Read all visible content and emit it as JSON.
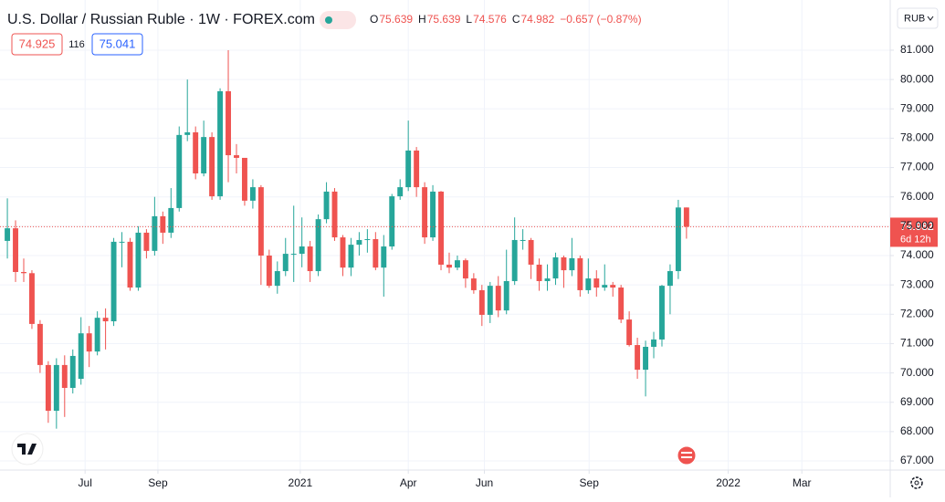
{
  "header": {
    "title": "U.S. Dollar / Russian Ruble · 1W · FOREX.com",
    "bid": "74.925",
    "spread": "116",
    "ask": "75.041",
    "ohlc_labels": [
      "O",
      "H",
      "L",
      "C"
    ],
    "change": "−0.657 (−0.87%)",
    "currency": "RUB",
    "countdown": "6d 12h"
  },
  "chart_data": {
    "type": "candlestick",
    "up_color": "#26a69a",
    "down_color": "#ef5350",
    "open": [
      74.5,
      74.93,
      73.44,
      73.4,
      71.67,
      70.27,
      68.71,
      70.27,
      69.49,
      69.8,
      71.35,
      70.73,
      71.88,
      71.76,
      74.47,
      74.47,
      72.91,
      74.78,
      74.16,
      75.34,
      74.78,
      75.62,
      78.11,
      78.2,
      76.8,
      78.04,
      76.02,
      79.6,
      77.42,
      77.33,
      75.87,
      76.33,
      74.0,
      72.97,
      73.47,
      74.06,
      74.06,
      74.31,
      73.47,
      75.24,
      76.18,
      74.62,
      73.59,
      74.37,
      74.53,
      74.56,
      73.59,
      74.31,
      76.02,
      76.33,
      77.58,
      76.33,
      74.62,
      76.18,
      73.69,
      73.59,
      73.84,
      73.22,
      72.82,
      71.98,
      72.97,
      72.13,
      73.13,
      74.53,
      74.53,
      73.69,
      73.13,
      73.22,
      73.94,
      73.5,
      73.91,
      72.82,
      73.22,
      72.91,
      73.0,
      72.91,
      71.82,
      70.95,
      70.11,
      70.89,
      71.14,
      72.97,
      73.47,
      75.639
    ],
    "high": [
      75.95,
      75.2,
      73.9,
      73.5,
      71.8,
      70.4,
      70.5,
      70.6,
      70.8,
      71.9,
      71.6,
      72.1,
      72.2,
      74.6,
      74.8,
      74.6,
      75.0,
      74.9,
      76.0,
      75.5,
      76.3,
      78.4,
      80.0,
      78.4,
      78.6,
      78.2,
      79.7,
      81.0,
      77.8,
      77.3,
      76.6,
      76.4,
      74.2,
      73.8,
      74.6,
      75.7,
      75.3,
      74.5,
      75.4,
      76.5,
      76.3,
      74.7,
      74.6,
      74.8,
      74.9,
      74.8,
      74.7,
      76.1,
      76.6,
      78.6,
      77.7,
      76.5,
      76.4,
      76.2,
      74.1,
      74.0,
      73.9,
      73.4,
      73.0,
      73.1,
      73.3,
      74.2,
      75.3,
      74.9,
      74.6,
      73.9,
      73.7,
      74.1,
      74.0,
      74.6,
      74.0,
      73.9,
      73.5,
      73.7,
      73.1,
      73.0,
      72.1,
      71.2,
      71.1,
      71.4,
      73.0,
      73.7,
      75.9,
      75.639
    ],
    "low": [
      73.9,
      73.1,
      73.1,
      71.5,
      70.0,
      68.3,
      68.1,
      68.5,
      69.3,
      69.6,
      70.2,
      70.6,
      70.8,
      71.6,
      73.6,
      72.8,
      72.8,
      73.9,
      74.0,
      74.4,
      74.6,
      75.5,
      77.9,
      76.6,
      76.7,
      75.9,
      75.9,
      76.5,
      76.8,
      75.7,
      75.6,
      73.0,
      72.9,
      72.7,
      73.3,
      73.1,
      73.6,
      73.1,
      73.3,
      75.1,
      74.5,
      73.3,
      73.3,
      74.0,
      74.1,
      73.5,
      72.6,
      74.2,
      75.9,
      76.2,
      76.0,
      74.4,
      74.5,
      73.5,
      73.4,
      73.5,
      72.9,
      72.7,
      71.6,
      71.7,
      71.9,
      72.0,
      73.0,
      74.2,
      73.2,
      72.8,
      72.8,
      73.0,
      72.9,
      73.3,
      72.6,
      72.7,
      72.6,
      72.8,
      72.6,
      71.7,
      70.9,
      69.8,
      69.2,
      70.5,
      70.9,
      72.0,
      73.2,
      74.576
    ],
    "close": [
      74.93,
      73.44,
      73.4,
      71.67,
      70.27,
      68.71,
      70.27,
      69.49,
      70.58,
      71.35,
      70.73,
      71.88,
      71.76,
      74.47,
      74.47,
      72.91,
      74.78,
      74.16,
      75.34,
      74.78,
      75.62,
      78.11,
      78.2,
      76.8,
      78.04,
      76.02,
      79.6,
      77.42,
      77.33,
      75.87,
      76.33,
      74.0,
      72.97,
      73.47,
      74.06,
      74.06,
      74.31,
      73.47,
      75.24,
      76.18,
      74.62,
      73.59,
      74.37,
      74.53,
      74.56,
      73.59,
      74.31,
      76.02,
      76.33,
      77.58,
      76.33,
      74.62,
      76.18,
      73.69,
      73.59,
      73.84,
      73.22,
      72.82,
      71.98,
      72.97,
      72.13,
      73.13,
      74.53,
      74.53,
      73.69,
      73.13,
      73.22,
      73.94,
      73.5,
      73.91,
      72.82,
      73.22,
      72.91,
      73.0,
      72.91,
      71.82,
      70.95,
      70.11,
      70.89,
      71.14,
      72.97,
      73.47,
      75.639,
      74.982
    ],
    "xlim": [
      -0.9,
      107.9
    ],
    "xticks": [
      {
        "value": 9.5,
        "label": "Jul"
      },
      {
        "value": 18.4,
        "label": "Sep"
      },
      {
        "value": 35.8,
        "label": "2021"
      },
      {
        "value": 49.0,
        "label": "Apr"
      },
      {
        "value": 58.3,
        "label": "Jun"
      },
      {
        "value": 71.1,
        "label": "Sep"
      },
      {
        "value": 88.1,
        "label": "2022"
      },
      {
        "value": 97.1,
        "label": "Mar"
      }
    ],
    "ylim": [
      66.69,
      82.71
    ],
    "yticks": [
      {
        "value": 67,
        "label": "67.000"
      },
      {
        "value": 68,
        "label": "68.000"
      },
      {
        "value": 69,
        "label": "69.000"
      },
      {
        "value": 70,
        "label": "70.000"
      },
      {
        "value": 71,
        "label": "71.000"
      },
      {
        "value": 72,
        "label": "72.000"
      },
      {
        "value": 73,
        "label": "73.000"
      },
      {
        "value": 74,
        "label": "74.000"
      },
      {
        "value": 75,
        "label": "75.000"
      },
      {
        "value": 76,
        "label": "76.000"
      },
      {
        "value": 77,
        "label": "77.000"
      },
      {
        "value": 78,
        "label": "78.000"
      },
      {
        "value": 79,
        "label": "79.000"
      },
      {
        "value": 80,
        "label": "80.000"
      },
      {
        "value": 81,
        "label": "81.000"
      }
    ],
    "grid": true,
    "last_price_line": true
  }
}
